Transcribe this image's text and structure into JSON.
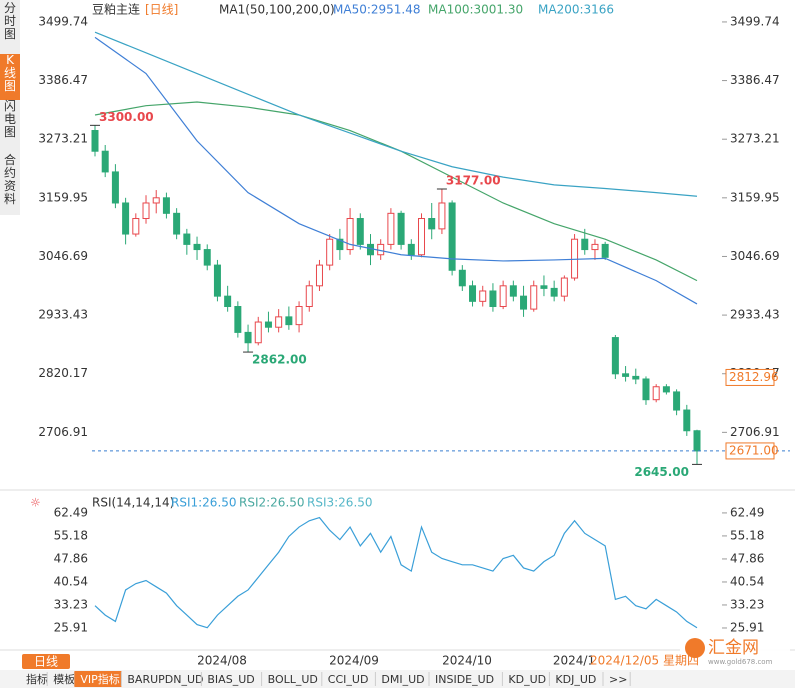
{
  "header": {
    "symbol": "豆粕主连",
    "period": "[日线]",
    "indicator": "MA1(50,100,200,0)"
  },
  "sidebar": [
    "分时图",
    "K线图",
    "闪电图",
    "合约资料"
  ],
  "chart_data": {
    "type": "candlestick",
    "candles": [
      [
        3290,
        3300,
        3240,
        3250
      ],
      [
        3250,
        3262,
        3200,
        3210
      ],
      [
        3210,
        3225,
        3140,
        3150
      ],
      [
        3150,
        3160,
        3070,
        3090
      ],
      [
        3090,
        3130,
        3085,
        3120
      ],
      [
        3120,
        3165,
        3110,
        3150
      ],
      [
        3150,
        3175,
        3130,
        3160
      ],
      [
        3160,
        3170,
        3120,
        3130
      ],
      [
        3130,
        3140,
        3080,
        3090
      ],
      [
        3090,
        3100,
        3050,
        3070
      ],
      [
        3070,
        3085,
        3040,
        3060
      ],
      [
        3060,
        3070,
        3020,
        3030
      ],
      [
        3030,
        3040,
        2960,
        2970
      ],
      [
        2970,
        2990,
        2940,
        2950
      ],
      [
        2950,
        2960,
        2890,
        2900
      ],
      [
        2900,
        2915,
        2862,
        2880
      ],
      [
        2880,
        2930,
        2875,
        2920
      ],
      [
        2920,
        2940,
        2900,
        2910
      ],
      [
        2910,
        2945,
        2900,
        2930
      ],
      [
        2930,
        2950,
        2905,
        2915
      ],
      [
        2915,
        2960,
        2900,
        2950
      ],
      [
        2950,
        3000,
        2940,
        2990
      ],
      [
        2990,
        3040,
        2980,
        3030
      ],
      [
        3030,
        3090,
        3020,
        3080
      ],
      [
        3080,
        3100,
        3040,
        3060
      ],
      [
        3060,
        3140,
        3050,
        3120
      ],
      [
        3120,
        3130,
        3060,
        3070
      ],
      [
        3070,
        3090,
        3030,
        3050
      ],
      [
        3050,
        3080,
        3040,
        3070
      ],
      [
        3070,
        3140,
        3060,
        3130
      ],
      [
        3130,
        3135,
        3060,
        3070
      ],
      [
        3070,
        3080,
        3040,
        3050
      ],
      [
        3050,
        3130,
        3045,
        3120
      ],
      [
        3120,
        3150,
        3080,
        3100
      ],
      [
        3100,
        3177,
        3090,
        3150
      ],
      [
        3150,
        3155,
        3010,
        3020
      ],
      [
        3020,
        3030,
        2980,
        2990
      ],
      [
        2990,
        3000,
        2950,
        2960
      ],
      [
        2960,
        2990,
        2950,
        2980
      ],
      [
        2980,
        2995,
        2940,
        2950
      ],
      [
        2950,
        3000,
        2945,
        2990
      ],
      [
        2990,
        3000,
        2960,
        2970
      ],
      [
        2970,
        2990,
        2930,
        2945
      ],
      [
        2945,
        3000,
        2940,
        2990
      ],
      [
        2990,
        3010,
        2970,
        2985
      ],
      [
        2985,
        3000,
        2960,
        2970
      ],
      [
        2970,
        3010,
        2960,
        3005
      ],
      [
        3005,
        3090,
        3000,
        3080
      ],
      [
        3080,
        3100,
        3050,
        3060
      ],
      [
        3060,
        3080,
        3040,
        3070
      ],
      [
        3070,
        3075,
        3040,
        3045
      ],
      [
        2890,
        2895,
        2810,
        2820
      ],
      [
        2820,
        2835,
        2805,
        2815
      ],
      [
        2815,
        2830,
        2800,
        2810
      ],
      [
        2810,
        2815,
        2760,
        2770
      ],
      [
        2770,
        2800,
        2765,
        2795
      ],
      [
        2795,
        2800,
        2780,
        2785
      ],
      [
        2785,
        2790,
        2740,
        2750
      ],
      [
        2750,
        2760,
        2700,
        2710
      ],
      [
        2710,
        2712,
        2645,
        2671
      ]
    ],
    "up_color": "#e8474c",
    "down_color": "#2aa876",
    "series": [
      {
        "name": "MA50:2951.48",
        "color": "#3f7fd6",
        "x": [
          0,
          5,
          10,
          15,
          20,
          25,
          30,
          35,
          40,
          45,
          50,
          55,
          59
        ],
        "values": [
          3470,
          3400,
          3270,
          3170,
          3110,
          3070,
          3050,
          3042,
          3038,
          3040,
          3043,
          3000,
          2955
        ]
      },
      {
        "name": "MA100:3001.30",
        "color": "#45a56a",
        "x": [
          0,
          5,
          10,
          15,
          20,
          25,
          30,
          35,
          40,
          45,
          50,
          55,
          59
        ],
        "values": [
          3320,
          3338,
          3345,
          3335,
          3320,
          3290,
          3250,
          3200,
          3150,
          3110,
          3080,
          3040,
          3000
        ]
      },
      {
        "name": "MA200:3166",
        "color": "#3aa3c4",
        "x": [
          0,
          5,
          10,
          15,
          20,
          25,
          30,
          35,
          40,
          45,
          50,
          55,
          59
        ],
        "values": [
          3480,
          3440,
          3400,
          3360,
          3320,
          3285,
          3250,
          3220,
          3200,
          3185,
          3178,
          3170,
          3163
        ]
      }
    ],
    "ylim": [
      2599.4,
      3522.8
    ],
    "yticks": [
      3499.74,
      3386.47,
      3273.21,
      3159.95,
      3046.69,
      2933.43,
      2820.17,
      2706.91
    ],
    "annotations": [
      {
        "value": 3300,
        "label": "3300.00"
      },
      {
        "value": 3177,
        "label": "3177.00"
      },
      {
        "value": 2862,
        "label": "2862.00"
      },
      {
        "value": 2645,
        "label": "2645.00"
      }
    ],
    "price_tags": [
      {
        "value": 2812.96,
        "label": "2812.96"
      },
      {
        "value": 2671,
        "label": "2671.00"
      }
    ],
    "x_tick_labels": [
      "2024/08",
      "2024/09",
      "2024/10",
      "2024/1",
      "2024/12/05 星期四"
    ],
    "rsi": {
      "title": "RSI(14,14,14)",
      "legend": [
        "RSI1:26.50",
        "RSI2:26.50",
        "RSI3:26.50"
      ],
      "color": "#3a9fd8",
      "values": [
        33,
        30,
        28,
        38,
        40,
        41,
        39,
        37,
        33,
        30,
        27,
        26,
        30,
        33,
        36,
        38,
        42,
        46,
        50,
        55,
        58,
        60,
        61,
        57,
        54,
        58,
        52,
        56,
        50,
        55,
        46,
        44,
        58,
        50,
        48,
        47,
        46,
        46,
        45,
        44,
        48,
        49,
        45,
        44,
        47,
        49,
        56,
        60,
        56,
        54,
        52,
        35,
        36,
        33,
        32,
        35,
        33,
        31,
        28,
        26
      ],
      "ylim": [
        20.5,
        66.6
      ],
      "yticks": [
        62.49,
        55.18,
        47.86,
        40.54,
        33.23,
        25.91
      ]
    }
  },
  "footer": {
    "period": "日线",
    "tabs": [
      "指标",
      "模板",
      "VIP指标",
      "BARUPDN_UD",
      "BIAS_UD",
      "BOLL_UD",
      "CCI_UD",
      "DMI_UD",
      "INSIDE_UD",
      "KD_UD",
      "KDJ_UD",
      ">>"
    ],
    "logo": "汇金网",
    "site": "www.gold678.com"
  }
}
